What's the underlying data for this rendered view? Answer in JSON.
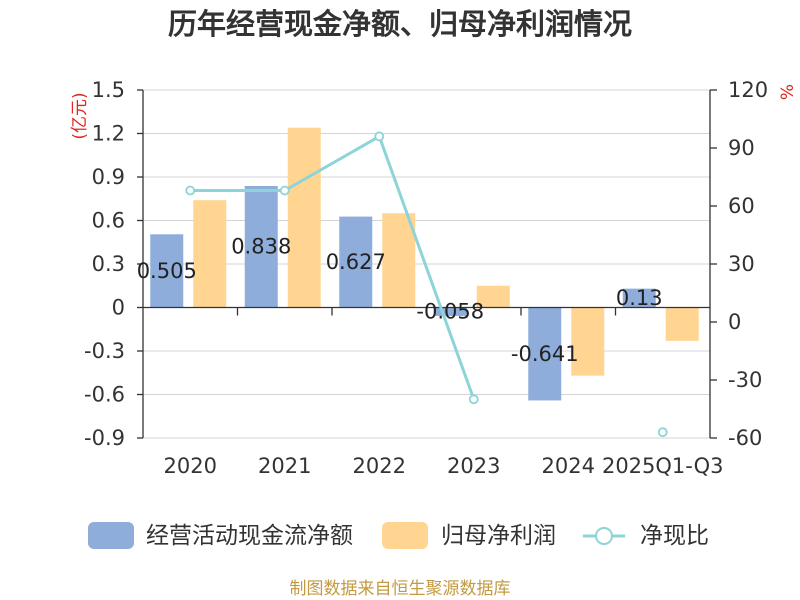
{
  "chart_data": {
    "type": "bar",
    "title": "历年经营现金净额、归母净利润情况",
    "categories": [
      "2020",
      "2021",
      "2022",
      "2023",
      "2024",
      "2025Q1-Q3"
    ],
    "series": [
      {
        "name": "经营活动现金流净额",
        "type": "bar",
        "axis": "left",
        "values": [
          0.505,
          0.838,
          0.627,
          -0.058,
          -0.641,
          0.13
        ],
        "show_labels": true,
        "color": "#8eaddb"
      },
      {
        "name": "归母净利润",
        "type": "bar",
        "axis": "left",
        "values": [
          0.74,
          1.24,
          0.65,
          0.15,
          -0.47,
          -0.23
        ],
        "show_labels": false,
        "color": "#ffd591"
      },
      {
        "name": "净现比",
        "type": "line",
        "axis": "right",
        "values": [
          68,
          68,
          96,
          -40,
          null,
          -57
        ],
        "color": "#8dd4d8"
      }
    ],
    "y_left": {
      "label": "(亿元)",
      "min": -0.9,
      "max": 1.5,
      "ticks": [
        1.5,
        1.2,
        0.9,
        0.6,
        0.3,
        0,
        -0.3,
        -0.6,
        -0.9
      ]
    },
    "y_right": {
      "label": "%",
      "min": -60,
      "max": 120,
      "ticks": [
        120,
        90,
        60,
        30,
        0,
        -30,
        -60
      ]
    },
    "grid": true,
    "legend_position": "bottom"
  },
  "source": "制图数据来自恒生聚源数据库"
}
